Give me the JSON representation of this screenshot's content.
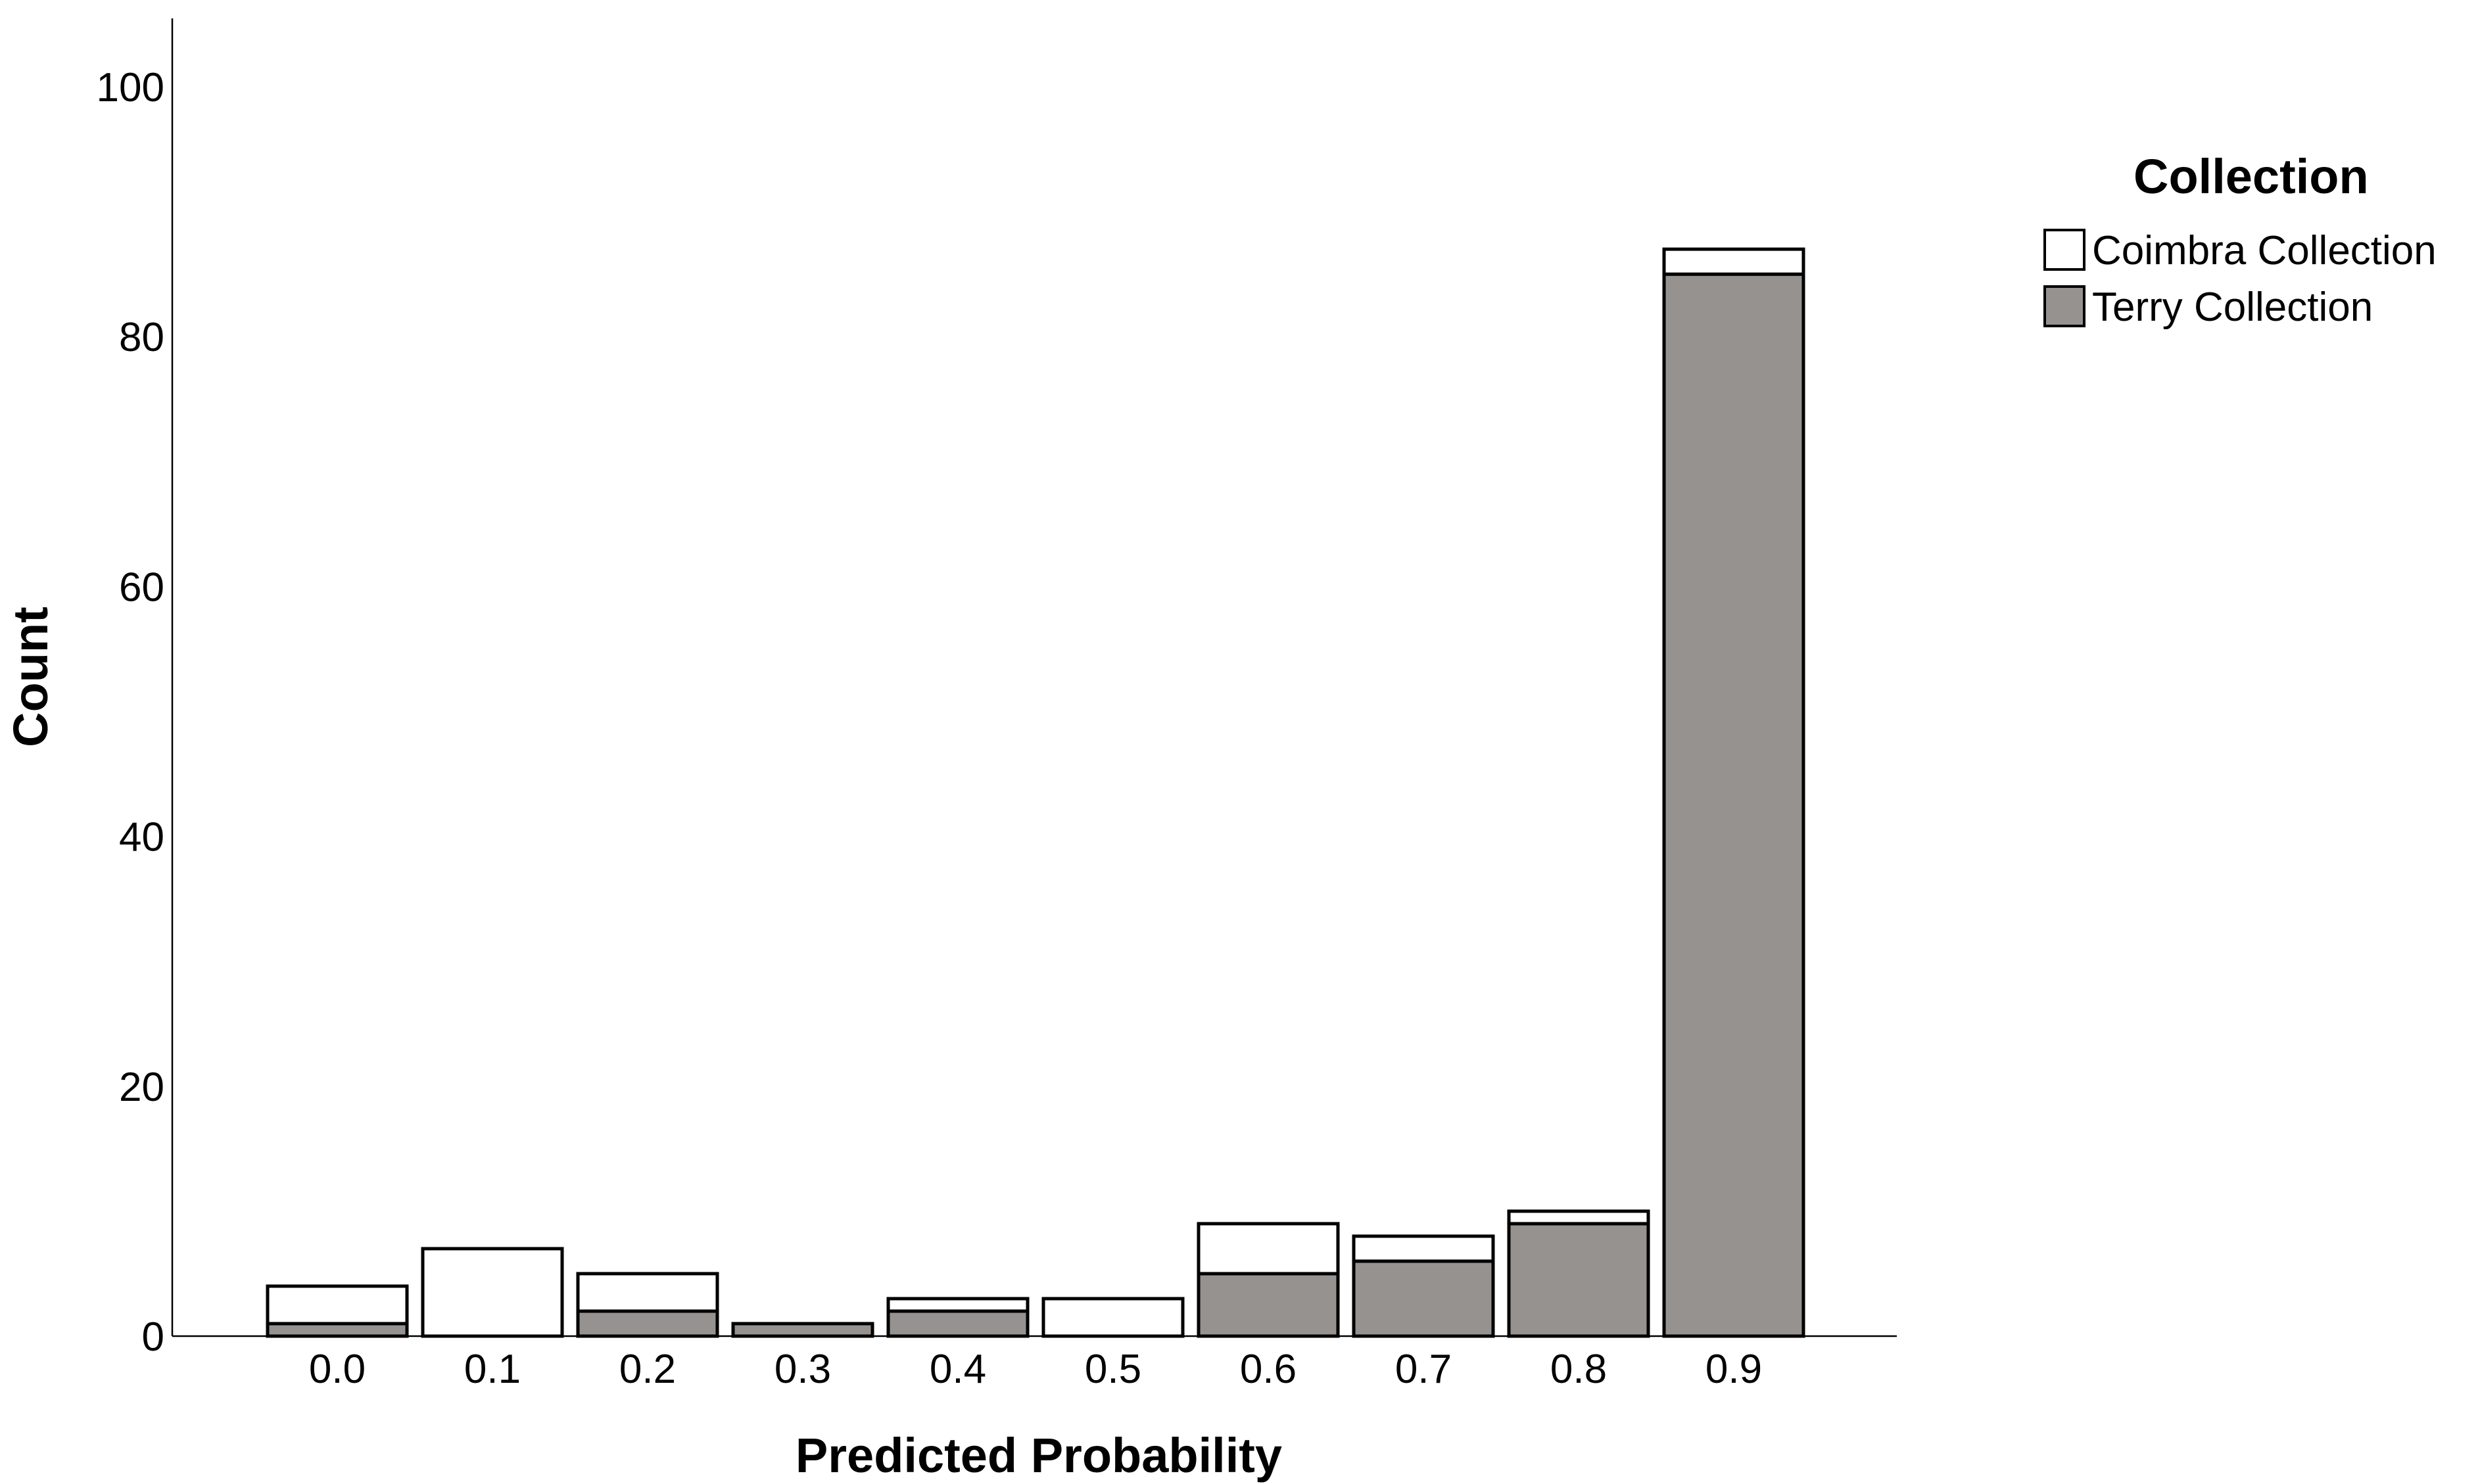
{
  "chart_data": {
    "type": "bar",
    "stacked": true,
    "categories": [
      "0.0",
      "0.1",
      "0.2",
      "0.3",
      "0.4",
      "0.5",
      "0.6",
      "0.7",
      "0.8",
      "0.9"
    ],
    "series": [
      {
        "name": "Terry Collection",
        "values": [
          1,
          0,
          2,
          1,
          2,
          0,
          5,
          6,
          9,
          85
        ],
        "color": "#959290"
      },
      {
        "name": "Coimbra Collection",
        "values": [
          3,
          7,
          3,
          0,
          1,
          3,
          4,
          2,
          1,
          2
        ],
        "color": "#ffffff"
      }
    ],
    "xlabel": "Predicted Probability",
    "ylabel": "Count",
    "ylim": [
      0,
      105
    ],
    "yticks": [
      0,
      20,
      40,
      60,
      80,
      100
    ],
    "grid": false,
    "legend": {
      "title": "Collection",
      "position": "top-right",
      "items": [
        "Coimbra Collection",
        "Terry Collection"
      ]
    }
  }
}
